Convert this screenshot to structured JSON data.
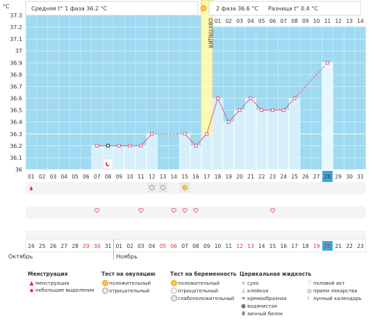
{
  "header": {
    "unit": "°C",
    "phase1_text": "Средняя t° 1 фаза 36.2 °C",
    "phase2_text": "2 фаза 36.6 °C",
    "diff_text": "Разница t° 0.4 °C",
    "ovulation_label": "ОВУЛЯЦИЯ"
  },
  "chart_data": {
    "type": "line",
    "ylim": [
      36.0,
      37.3
    ],
    "y_ticks": [
      "36",
      "36.1",
      "36.2",
      "36.3",
      "36.4",
      "36.5",
      "36.6",
      "36.7",
      "36.8",
      "36.9",
      "37",
      "37.1",
      "37.2",
      "37.3"
    ],
    "cycle_days_top": [
      "01",
      "02",
      "03",
      "04",
      "05",
      "06",
      "07",
      "08",
      "09",
      "10",
      "11",
      "12",
      "13",
      "14",
      "15",
      "16",
      "17",
      "18",
      "19",
      "20",
      "21",
      "22",
      "23",
      "24",
      "25",
      "26",
      "27",
      "28",
      "29",
      "30",
      "31"
    ],
    "phase2_days": [
      "01",
      "02",
      "03",
      "04",
      "05",
      "06",
      "07",
      "08",
      "09",
      "10",
      "11",
      "12",
      "13",
      "14"
    ],
    "ovulation_day_index": 16,
    "coverline": 36.3,
    "temperatures": [
      null,
      null,
      null,
      null,
      null,
      null,
      36.2,
      36.2,
      36.2,
      36.2,
      36.2,
      36.3,
      null,
      null,
      36.3,
      36.2,
      36.3,
      36.6,
      36.4,
      36.5,
      36.6,
      36.5,
      36.5,
      36.5,
      36.6,
      null,
      null,
      36.9,
      null,
      null,
      null
    ],
    "gap_days": [
      12,
      13,
      25,
      26
    ],
    "highlight_day_index": 27,
    "calendar_dates": [
      "24",
      "25",
      "26",
      "27",
      "28",
      "29",
      "30",
      "31",
      "01",
      "02",
      "03",
      "04",
      "05",
      "06",
      "07",
      "08",
      "09",
      "10",
      "11",
      "12",
      "13",
      "14",
      "15",
      "16",
      "17",
      "18",
      "19",
      "20",
      "21",
      "22",
      "23"
    ],
    "weekend_indices": [
      5,
      6,
      12,
      13,
      19,
      20,
      26,
      27
    ],
    "month_oct": "Октябрь",
    "month_nov": "Ноябрь",
    "marker_menstruation_day_index": 0,
    "marker_ovulation_neg_indices": [
      11,
      12
    ],
    "marker_ovulation_pos_index": 14,
    "marker_moon_index": 7,
    "marker_heart_indices": [
      6,
      10,
      13,
      14,
      15,
      22
    ],
    "colors": {
      "sky": "#9fdaf2",
      "bar": "#d6f0fb",
      "line": "#e05a80",
      "ovulation": "#fff8b0",
      "grid_alt": "#f4f4f4",
      "highlight": "#3aa8e0"
    }
  },
  "legend": {
    "menstruation": {
      "title": "Менструация",
      "items": [
        "менструация",
        "небольшие выделения"
      ]
    },
    "ovulation_test": {
      "title": "Тест на овуляцию",
      "items": [
        "положительный",
        "отрицательный"
      ]
    },
    "pregnancy_test": {
      "title": "Тест на беременность",
      "items": [
        "положительный",
        "отрицательный",
        "слабоположительный"
      ]
    },
    "cervical": {
      "title": "Церикальная жидкость",
      "items": [
        "сухо",
        "клейкая",
        "кремообразная",
        "водянистая",
        "яичный белок"
      ]
    },
    "other": {
      "items": [
        "половой акт",
        "прием лекарства",
        "лунный календарь"
      ]
    }
  }
}
